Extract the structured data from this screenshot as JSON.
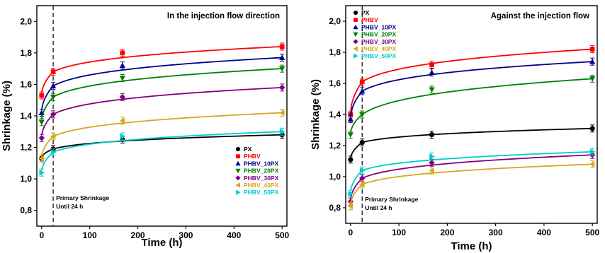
{
  "chart_data": [
    {
      "type": "line",
      "title": "In the injection flow direction",
      "xlabel": "Time (h)",
      "ylabel": "Shrinkage (%)",
      "xlim": [
        -10,
        510
      ],
      "ylim": [
        0.7,
        2.1
      ],
      "xticks": [
        0,
        100,
        200,
        300,
        400,
        500
      ],
      "yticks": [
        0.8,
        1.0,
        1.2,
        1.4,
        1.6,
        1.8,
        2.0
      ],
      "ytick_labels": [
        "0,8",
        "1,0",
        "1,2",
        "1,4",
        "1,6",
        "1,8",
        "2,0"
      ],
      "legend_position": "bottom-right",
      "annotation": {
        "x": 24,
        "line1": "Primary Shrinkage",
        "line2": "Until 24 h"
      },
      "x": [
        0,
        24,
        168,
        500
      ],
      "series": [
        {
          "name": "PX",
          "color": "#000000",
          "marker": "circle",
          "values": [
            1.13,
            1.19,
            1.25,
            1.28
          ]
        },
        {
          "name": "PHBV",
          "color": "#ff0000",
          "marker": "square",
          "values": [
            1.53,
            1.68,
            1.8,
            1.84
          ]
        },
        {
          "name": "PHBV_10PX",
          "color": "#00008b",
          "marker": "triangle-up",
          "values": [
            1.42,
            1.59,
            1.72,
            1.77
          ]
        },
        {
          "name": "PHBV_20PX",
          "color": "#008000",
          "marker": "triangle-down",
          "values": [
            1.36,
            1.52,
            1.64,
            1.7
          ]
        },
        {
          "name": "PHBV_30PX",
          "color": "#800080",
          "marker": "diamond",
          "values": [
            1.26,
            1.41,
            1.52,
            1.58
          ]
        },
        {
          "name": "PHBV_40PX",
          "color": "#daa520",
          "marker": "triangle-left",
          "values": [
            1.13,
            1.27,
            1.37,
            1.42
          ]
        },
        {
          "name": "PHBV_50PX",
          "color": "#00cccc",
          "marker": "triangle-right",
          "values": [
            1.04,
            1.17,
            1.27,
            1.3
          ]
        }
      ]
    },
    {
      "type": "line",
      "title": "Against the injection flow",
      "xlabel": "Time (h)",
      "ylabel": "Shrinkage (%)",
      "xlim": [
        -10,
        510
      ],
      "ylim": [
        0.7,
        2.1
      ],
      "xticks": [
        0,
        100,
        200,
        300,
        400,
        500
      ],
      "yticks": [
        0.8,
        1.0,
        1.2,
        1.4,
        1.6,
        1.8,
        2.0
      ],
      "ytick_labels": [
        "0,8",
        "1,0",
        "1,2",
        "1,4",
        "1,6",
        "1,8",
        "2,0"
      ],
      "legend_position": "top-left",
      "annotation": {
        "x": 24,
        "line1": "Primary Shrinkage",
        "line2": "Until 24 h"
      },
      "x": [
        0,
        24,
        168,
        500
      ],
      "series": [
        {
          "name": "PX",
          "color": "#000000",
          "marker": "circle",
          "values": [
            1.11,
            1.22,
            1.27,
            1.31
          ]
        },
        {
          "name": "PHBV",
          "color": "#ff0000",
          "marker": "square",
          "values": [
            1.4,
            1.61,
            1.72,
            1.82
          ]
        },
        {
          "name": "PHBV_10PX",
          "color": "#00008b",
          "marker": "triangle-up",
          "values": [
            1.37,
            1.55,
            1.67,
            1.74
          ]
        },
        {
          "name": "PHBV_20PX",
          "color": "#008000",
          "marker": "triangle-down",
          "values": [
            1.27,
            1.4,
            1.56,
            1.63
          ]
        },
        {
          "name": "PHBV_30PX",
          "color": "#800080",
          "marker": "diamond",
          "values": [
            0.84,
            0.99,
            1.09,
            1.14
          ]
        },
        {
          "name": "PHBV_40PX",
          "color": "#daa520",
          "marker": "triangle-left",
          "values": [
            0.81,
            0.95,
            1.04,
            1.08
          ]
        },
        {
          "name": "PHBV_50PX",
          "color": "#00cccc",
          "marker": "triangle-right",
          "values": [
            0.89,
            1.04,
            1.13,
            1.16
          ]
        }
      ]
    }
  ]
}
